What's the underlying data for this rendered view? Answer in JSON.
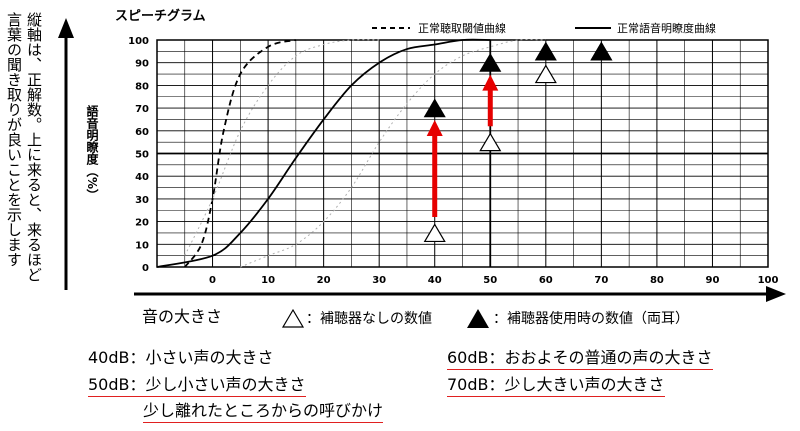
{
  "left_note_lines": [
    "縦軸は、正解数。上に来ると、来るほど",
    "言葉の聞き取りが良いことを示します"
  ],
  "chart_data": {
    "type": "line",
    "title": "スピーチグラム",
    "ylabel": "語音明瞭度（%）",
    "xlabel": "音の大きさ",
    "x_ticks": [
      0,
      10,
      20,
      30,
      40,
      50,
      60,
      70,
      80,
      90,
      100
    ],
    "y_ticks": [
      0,
      10,
      20,
      30,
      40,
      50,
      60,
      70,
      80,
      90,
      100
    ],
    "xlim": [
      -10,
      100
    ],
    "ylim": [
      0,
      100
    ],
    "legend_position": "top-right",
    "series": [
      {
        "name": "正常聴取閾値曲線",
        "style": "dashed",
        "x": [
          -5,
          -2,
          0,
          2,
          5,
          10,
          15
        ],
        "y": [
          0,
          10,
          30,
          60,
          85,
          97,
          100
        ]
      },
      {
        "name": "正常語音明瞭度曲線",
        "style": "solid",
        "x": [
          -10,
          0,
          5,
          10,
          15,
          20,
          25,
          30,
          35,
          40,
          45,
          50
        ],
        "y": [
          0,
          5,
          15,
          30,
          48,
          65,
          80,
          90,
          96,
          98,
          100,
          100
        ]
      },
      {
        "name": "",
        "style": "dotted",
        "x": [
          -5,
          0,
          5,
          10,
          15,
          20,
          25,
          30
        ],
        "y": [
          5,
          30,
          60,
          80,
          93,
          98,
          100,
          100
        ]
      },
      {
        "name": "",
        "style": "dotted",
        "x": [
          5,
          10,
          15,
          20,
          25,
          30,
          35,
          40,
          45,
          50,
          55,
          60
        ],
        "y": [
          0,
          5,
          10,
          20,
          35,
          55,
          72,
          85,
          93,
          97,
          100,
          100
        ]
      }
    ],
    "points_without_aid": [
      {
        "x": 40,
        "y": 15
      },
      {
        "x": 50,
        "y": 55
      },
      {
        "x": 60,
        "y": 85
      },
      {
        "x": 70,
        "y": 95
      }
    ],
    "points_with_aid": [
      {
        "x": 40,
        "y": 70
      },
      {
        "x": 50,
        "y": 90
      },
      {
        "x": 60,
        "y": 95
      },
      {
        "x": 70,
        "y": 95
      }
    ],
    "arrows": [
      {
        "x": 40,
        "from": 22,
        "to": 63,
        "color": "#e60000"
      },
      {
        "x": 50,
        "from": 62,
        "to": 83,
        "color": "#e60000"
      }
    ],
    "bottom_legend": {
      "open_label": "：補聴器なしの数値",
      "filled_label": "：補聴器使用時の数値（両耳）"
    }
  },
  "notes": [
    {
      "label": "40dB",
      "text": "：小さい声の大きさ",
      "underline": false
    },
    {
      "label": "50dB",
      "text": "：少し小さい声の大きさ",
      "underline": true
    },
    {
      "label": "",
      "text": "少し離れたところからの呼びかけ",
      "underline": true
    },
    {
      "label": "60dB",
      "text": "：おおよその普通の声の大きさ",
      "underline": true
    },
    {
      "label": "70dB",
      "text": "：少し大きい声の大きさ",
      "underline": true
    }
  ],
  "colors": {
    "arrow": "#e60000",
    "underline": "#e02020",
    "ink": "#000000",
    "dotted": "#b0b0b0"
  }
}
